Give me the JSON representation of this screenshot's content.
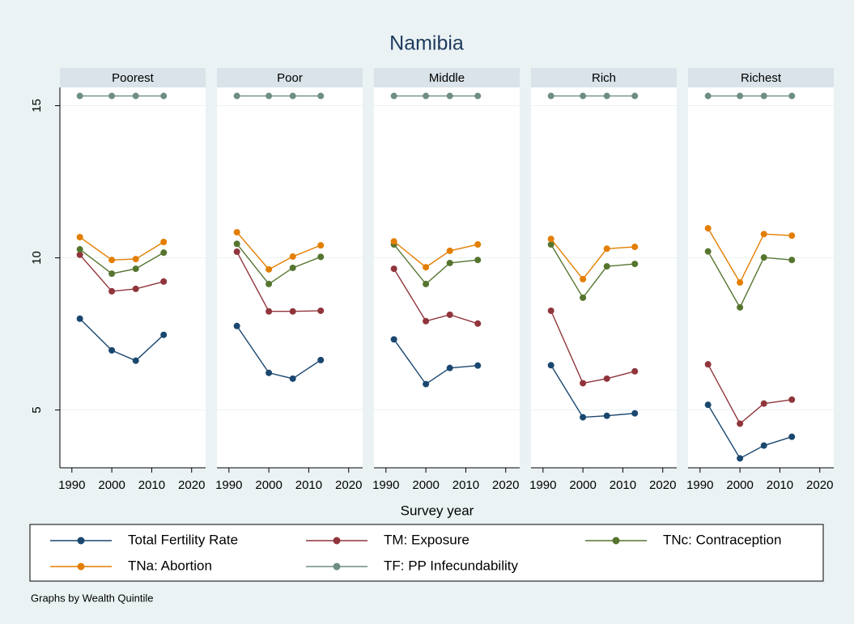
{
  "chart_data": {
    "type": "line",
    "title": "Namibia",
    "xlabel": "Survey year",
    "note": "Graphs by Wealth Quintile",
    "x": [
      1992,
      2000,
      2006,
      2013
    ],
    "xlim": [
      1987,
      2023.5
    ],
    "xticks": [
      1990,
      2000,
      2010,
      2020
    ],
    "ylim": [
      3.1,
      15.6
    ],
    "yticks": [
      5,
      10,
      15
    ],
    "grid": true,
    "series": [
      {
        "name": "Total Fertility Rate",
        "color": "#1a476f"
      },
      {
        "name": "TM: Exposure",
        "color": "#90353b"
      },
      {
        "name": "TNc: Contraception",
        "color": "#55752f"
      },
      {
        "name": "TNa: Abortion",
        "color": "#e37e00"
      },
      {
        "name": "TF: PP Infecundability",
        "color": "#6e8e84"
      }
    ],
    "panels": [
      {
        "title": "Poorest",
        "series": [
          {
            "values": [
              8.0,
              6.96,
              6.62,
              7.47
            ]
          },
          {
            "values": [
              10.1,
              8.9,
              8.98,
              9.22
            ]
          },
          {
            "values": [
              10.28,
              9.48,
              9.64,
              10.17
            ]
          },
          {
            "values": [
              10.68,
              9.93,
              9.96,
              10.52
            ]
          },
          {
            "values": [
              15.32,
              15.32,
              15.32,
              15.32
            ]
          }
        ]
      },
      {
        "title": "Poor",
        "series": [
          {
            "values": [
              7.76,
              6.22,
              6.03,
              6.64
            ]
          },
          {
            "values": [
              10.2,
              8.24,
              8.24,
              8.26
            ]
          },
          {
            "values": [
              10.46,
              9.14,
              9.67,
              10.03
            ]
          },
          {
            "values": [
              10.84,
              9.62,
              10.04,
              10.41
            ]
          },
          {
            "values": [
              15.32,
              15.32,
              15.32,
              15.32
            ]
          }
        ]
      },
      {
        "title": "Middle",
        "series": [
          {
            "values": [
              7.32,
              5.85,
              6.38,
              6.46
            ]
          },
          {
            "values": [
              9.64,
              7.92,
              8.13,
              7.84
            ]
          },
          {
            "values": [
              10.44,
              9.14,
              9.83,
              9.93
            ]
          },
          {
            "values": [
              10.54,
              9.69,
              10.23,
              10.44
            ]
          },
          {
            "values": [
              15.32,
              15.32,
              15.32,
              15.32
            ]
          }
        ]
      },
      {
        "title": "Rich",
        "series": [
          {
            "values": [
              6.47,
              4.76,
              4.81,
              4.89
            ]
          },
          {
            "values": [
              8.26,
              5.88,
              6.03,
              6.27
            ]
          },
          {
            "values": [
              10.44,
              8.69,
              9.72,
              9.8
            ]
          },
          {
            "values": [
              10.62,
              9.3,
              10.3,
              10.36
            ]
          },
          {
            "values": [
              15.32,
              15.32,
              15.32,
              15.32
            ]
          }
        ]
      },
      {
        "title": "Richest",
        "series": [
          {
            "values": [
              5.17,
              3.41,
              3.83,
              4.12
            ]
          },
          {
            "values": [
              6.5,
              4.55,
              5.21,
              5.34
            ]
          },
          {
            "values": [
              10.21,
              8.37,
              10.01,
              9.93
            ]
          },
          {
            "values": [
              10.97,
              9.19,
              10.78,
              10.73
            ]
          },
          {
            "values": [
              15.32,
              15.32,
              15.32,
              15.32
            ]
          }
        ]
      }
    ]
  }
}
